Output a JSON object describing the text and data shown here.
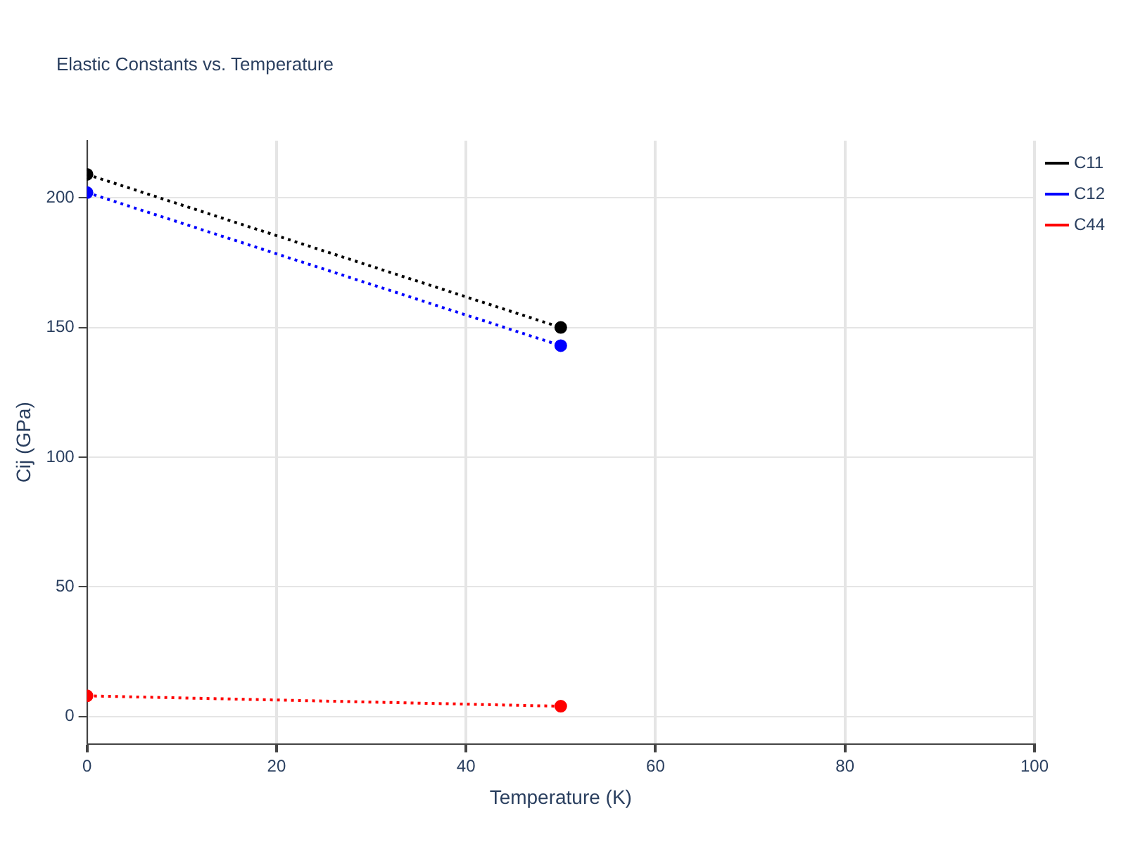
{
  "chart_data": {
    "type": "line",
    "title": "Elastic Constants vs. Temperature",
    "xlabel": "Temperature (K)",
    "ylabel": "Cij (GPa)",
    "x": [
      0,
      50
    ],
    "series": [
      {
        "name": "C11",
        "color": "#000000",
        "values": [
          209,
          150
        ]
      },
      {
        "name": "C12",
        "color": "#0000ff",
        "values": [
          202,
          143
        ]
      },
      {
        "name": "C44",
        "color": "#ff0000",
        "values": [
          8,
          4
        ]
      }
    ],
    "xlim": [
      0,
      100
    ],
    "xticks": [
      0,
      20,
      40,
      60,
      80,
      100
    ],
    "ylim": [
      -10.5,
      222
    ],
    "yticks": [
      0,
      50,
      100,
      150,
      200
    ],
    "grid": true,
    "legend": "top right",
    "marker": "circle",
    "line_style": "dotted"
  }
}
